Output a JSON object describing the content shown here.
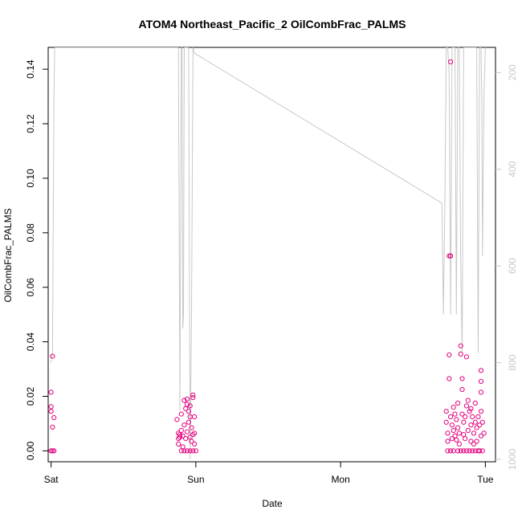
{
  "chart_data": {
    "type": "scatter",
    "title": "ATOM4 Northeast_Pacific_2 OilCombFrac_PALMS",
    "xlabel": "Date",
    "ylabel": "OilCombFrac_PALMS",
    "x_ticks": [
      "Sat",
      "Sun",
      "Mon",
      "Tue"
    ],
    "x_range_days": [
      -0.02,
      3.07
    ],
    "ylim": [
      -0.004,
      0.148
    ],
    "y_ticks": [
      "0.00",
      "0.02",
      "0.04",
      "0.06",
      "0.08",
      "0.10",
      "0.12",
      "0.14"
    ],
    "y_tick_values": [
      0,
      0.02,
      0.04,
      0.06,
      0.08,
      0.1,
      0.12,
      0.14
    ],
    "right_axis": {
      "ticks": [
        "200",
        "400",
        "600",
        "800",
        "1000"
      ],
      "tick_values": [
        200,
        400,
        600,
        800,
        1000
      ],
      "range": [
        1005,
        148
      ],
      "inverted": true,
      "color": "#c8c8c8"
    },
    "colors": {
      "points": "#e6007e",
      "secondary_line": "#c8c8c8",
      "axis": "#000000"
    },
    "series": [
      {
        "kind": "points",
        "points": [
          [
            0.01,
            0.0347
          ],
          [
            0.0,
            0.0215
          ],
          [
            0.0,
            0.0162
          ],
          [
            0.0,
            0.0145
          ],
          [
            0.02,
            0.0122
          ],
          [
            0.01,
            0.0087
          ],
          [
            0.0,
            0.0
          ],
          [
            0.01,
            0.0
          ],
          [
            0.02,
            0.0
          ],
          [
            0.87,
            0.0115
          ],
          [
            0.88,
            0.0065
          ],
          [
            0.88,
            0.0045
          ],
          [
            0.88,
            0.0025
          ],
          [
            0.89,
            0.006
          ],
          [
            0.89,
            0.005
          ],
          [
            0.9,
            0.0135
          ],
          [
            0.9,
            0.0075
          ],
          [
            0.9,
            0.0
          ],
          [
            0.91,
            0.0055
          ],
          [
            0.91,
            0.0015
          ],
          [
            0.92,
            0.0185
          ],
          [
            0.92,
            0.0095
          ],
          [
            0.92,
            0.0
          ],
          [
            0.93,
            0.0155
          ],
          [
            0.93,
            0.0045
          ],
          [
            0.94,
            0.019
          ],
          [
            0.94,
            0.017
          ],
          [
            0.94,
            0.007
          ],
          [
            0.94,
            0.0
          ],
          [
            0.95,
            0.0145
          ],
          [
            0.95,
            0.0105
          ],
          [
            0.96,
            0.0165
          ],
          [
            0.96,
            0.0125
          ],
          [
            0.96,
            0.005
          ],
          [
            0.96,
            0.0
          ],
          [
            0.97,
            0.0085
          ],
          [
            0.97,
            0.0035
          ],
          [
            0.98,
            0.0205
          ],
          [
            0.98,
            0.0195
          ],
          [
            0.98,
            0.006
          ],
          [
            0.98,
            0.0
          ],
          [
            0.99,
            0.0125
          ],
          [
            0.99,
            0.0065
          ],
          [
            0.99,
            0.0025
          ],
          [
            1.0,
            0.0
          ],
          [
            2.73,
            0.0145
          ],
          [
            2.73,
            0.0105
          ],
          [
            2.74,
            0.0065
          ],
          [
            2.74,
            0.0035
          ],
          [
            2.74,
            0.0
          ],
          [
            2.75,
            0.0715
          ],
          [
            2.75,
            0.0352
          ],
          [
            2.75,
            0.0265
          ],
          [
            2.76,
            0.1427
          ],
          [
            2.76,
            0.0715
          ],
          [
            2.76,
            0.0125
          ],
          [
            2.76,
            0.0
          ],
          [
            2.77,
            0.0095
          ],
          [
            2.77,
            0.0045
          ],
          [
            2.78,
            0.016
          ],
          [
            2.78,
            0.0075
          ],
          [
            2.78,
            0.0
          ],
          [
            2.79,
            0.0135
          ],
          [
            2.79,
            0.0055
          ],
          [
            2.8,
            0.0115
          ],
          [
            2.8,
            0.004
          ],
          [
            2.81,
            0.0175
          ],
          [
            2.81,
            0.0085
          ],
          [
            2.81,
            0.0
          ],
          [
            2.82,
            0.0065
          ],
          [
            2.82,
            0.0025
          ],
          [
            2.83,
            0.0385
          ],
          [
            2.83,
            0.0355
          ],
          [
            2.83,
            0.0
          ],
          [
            2.84,
            0.0265
          ],
          [
            2.84,
            0.0225
          ],
          [
            2.84,
            0.0135
          ],
          [
            2.85,
            0.0105
          ],
          [
            2.85,
            0.006
          ],
          [
            2.85,
            0.0
          ],
          [
            2.86,
            0.0125
          ],
          [
            2.86,
            0.0045
          ],
          [
            2.87,
            0.0345
          ],
          [
            2.87,
            0.0165
          ],
          [
            2.87,
            0.0
          ],
          [
            2.88,
            0.0185
          ],
          [
            2.88,
            0.0075
          ],
          [
            2.89,
            0.0145
          ],
          [
            2.89,
            0.0
          ],
          [
            2.9,
            0.0155
          ],
          [
            2.9,
            0.0095
          ],
          [
            2.9,
            0.0035
          ],
          [
            2.91,
            0.0125
          ],
          [
            2.91,
            0.0
          ],
          [
            2.92,
            0.0065
          ],
          [
            2.92,
            0.0025
          ],
          [
            2.93,
            0.0175
          ],
          [
            2.93,
            0.0105
          ],
          [
            2.93,
            0.0
          ],
          [
            2.94,
            0.0085
          ],
          [
            2.94,
            0.0035
          ],
          [
            2.95,
            0.0125
          ],
          [
            2.95,
            0.0
          ],
          [
            2.96,
            0.0095
          ],
          [
            2.96,
            0.0
          ],
          [
            2.97,
            0.0295
          ],
          [
            2.97,
            0.0255
          ],
          [
            2.97,
            0.0215
          ],
          [
            2.97,
            0.0145
          ],
          [
            2.97,
            0.0055
          ],
          [
            2.98,
            0.0105
          ],
          [
            2.98,
            0.0
          ],
          [
            2.99,
            0.0065
          ]
        ]
      },
      {
        "kind": "line",
        "axis": "right",
        "points": [
          [
            0.0,
            800
          ],
          [
            0.01,
            780
          ],
          [
            0.015,
            500
          ],
          [
            0.02,
            250
          ],
          [
            0.025,
            148
          ],
          [
            0.87,
            148
          ],
          [
            0.88,
            148
          ],
          [
            0.89,
            900
          ],
          [
            0.9,
            148
          ],
          [
            0.905,
            148
          ],
          [
            0.91,
            730
          ],
          [
            0.915,
            700
          ],
          [
            0.92,
            148
          ],
          [
            0.93,
            148
          ],
          [
            0.95,
            148
          ],
          [
            0.96,
            1000
          ],
          [
            0.97,
            700
          ],
          [
            0.98,
            148
          ],
          [
            0.99,
            160
          ],
          [
            2.7,
            470
          ],
          [
            2.71,
            700
          ],
          [
            2.72,
            480
          ],
          [
            2.73,
            148
          ],
          [
            2.74,
            148
          ],
          [
            2.75,
            200
          ],
          [
            2.76,
            700
          ],
          [
            2.77,
            148
          ],
          [
            2.78,
            148
          ],
          [
            2.79,
            148
          ],
          [
            2.8,
            700
          ],
          [
            2.81,
            148
          ],
          [
            2.82,
            148
          ],
          [
            2.83,
            600
          ],
          [
            2.84,
            780
          ],
          [
            2.85,
            148
          ],
          [
            2.86,
            148
          ],
          [
            2.87,
            148
          ],
          [
            2.88,
            148
          ],
          [
            2.89,
            148
          ],
          [
            2.9,
            148
          ],
          [
            2.91,
            148
          ],
          [
            2.92,
            148
          ],
          [
            2.93,
            148
          ],
          [
            2.94,
            148
          ],
          [
            2.95,
            780
          ],
          [
            2.96,
            148
          ],
          [
            2.97,
            148
          ],
          [
            2.975,
            250
          ],
          [
            2.98,
            580
          ],
          [
            2.99,
            250
          ],
          [
            3.0,
            148
          ]
        ]
      }
    ]
  }
}
